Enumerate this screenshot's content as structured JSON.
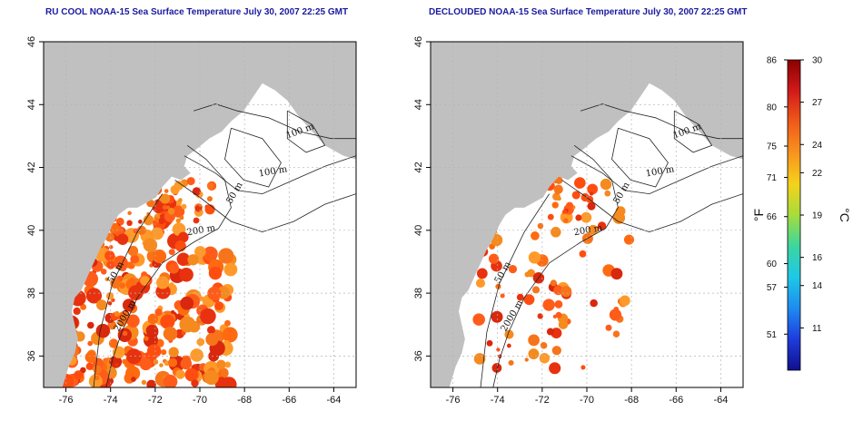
{
  "panels": [
    {
      "id": "left",
      "title": "RU COOL NOAA-15 Sea Surface Temperature July 30, 2007 22:25 GMT",
      "variant": "rucool"
    },
    {
      "id": "right",
      "title": "DECLOUDED NOAA-15 Sea Surface Temperature July 30, 2007 22:25 GMT",
      "variant": "declouded"
    }
  ],
  "axes": {
    "x_ticks": [
      "-76",
      "-74",
      "-72",
      "-70",
      "-68",
      "-66",
      "-64"
    ],
    "y_ticks": [
      "36",
      "38",
      "40",
      "42",
      "44",
      "46"
    ]
  },
  "contour_labels": {
    "left": [
      "100 m",
      "100 m",
      "50 m",
      "200 m",
      "50 m",
      "2000 m"
    ],
    "right": [
      "100 m",
      "100 m",
      "50 m",
      "200 m",
      "50 m",
      "2000 m"
    ]
  },
  "colorbar": {
    "fahrenheit_ticks": [
      "86",
      "80",
      "75",
      "71",
      "66",
      "60",
      "57",
      "51"
    ],
    "celsius_ticks": [
      "30",
      "27",
      "24",
      "22",
      "19",
      "16",
      "14",
      "11"
    ],
    "unit_f": "°F",
    "unit_c": "°C",
    "colors": [
      "#8b0000",
      "#d11a1a",
      "#f05a1a",
      "#f7941e",
      "#f5d21a",
      "#a6dc3c",
      "#3cd6a0",
      "#1ec8e6",
      "#1e8cf0",
      "#1e3cdc",
      "#10108c"
    ]
  },
  "colors": {
    "land": "#c0c0c0",
    "title": "#1a1aa0",
    "frame": "#000000",
    "grid": "#b4b4b4"
  }
}
